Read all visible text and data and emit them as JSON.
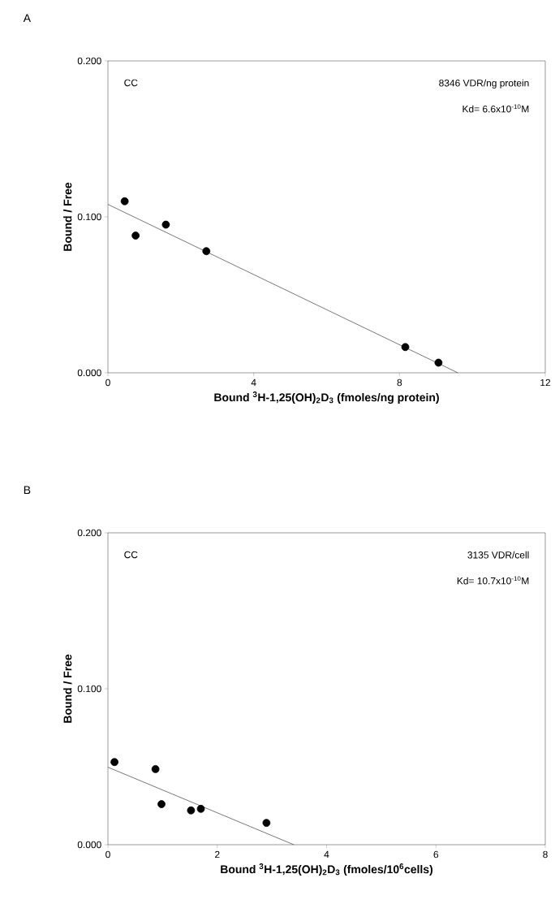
{
  "chart_data": [
    {
      "type": "scatter",
      "title": "A",
      "xlabel": "Bound $^{3}$H-1,25(OH)$_{2}$D$_{3}$ (fmoles/ng protein)",
      "ylabel": "Bound / Free",
      "xlim": [
        0,
        12
      ],
      "xticks": [
        0,
        4,
        8,
        12
      ],
      "ylim": [
        0,
        0.2
      ],
      "yticks": [
        {
          "value": 0,
          "label": "0.000"
        },
        {
          "value": 0.1,
          "label": "0.100"
        },
        {
          "value": 0.2,
          "label": "0.200"
        }
      ],
      "annotations": [
        "CC",
        "8346 VDR/ng protein",
        "Kd= 6.6x10$^{-10}$M"
      ],
      "series": [
        {
          "color": "#000000",
          "marker": "circle",
          "x": [
            0.46,
            0.76,
            1.59,
            2.7,
            8.16,
            9.07
          ],
          "values": [
            0.11,
            0.088,
            0.095,
            0.078,
            0.0165,
            0.0065
          ]
        },
        {
          "type": "line",
          "color": "#555555",
          "marker": "none",
          "x": [
            0,
            9.6
          ],
          "values": [
            0.108,
            0
          ]
        }
      ]
    },
    {
      "type": "scatter",
      "title": "B",
      "xlabel": "Bound $^{3}$H-1,25(OH)$_{2}$D$_{3}$ (fmoles/10$^{6}$cells)",
      "ylabel": "Bound / Free",
      "xlim": [
        0,
        8
      ],
      "xticks": [
        0,
        2,
        4,
        6,
        8
      ],
      "ylim": [
        0,
        0.2
      ],
      "yticks": [
        {
          "value": 0,
          "label": "0.000"
        },
        {
          "value": 0.1,
          "label": "0.100"
        },
        {
          "value": 0.2,
          "label": "0.200"
        }
      ],
      "annotations": [
        "CC",
        "3135 VDR/cell",
        "Kd= 10.7x10$^{-10}$M"
      ],
      "series": [
        {
          "color": "#000000",
          "marker": "circle",
          "x": [
            0.12,
            0.87,
            0.98,
            1.52,
            1.7,
            2.9
          ],
          "values": [
            0.053,
            0.0485,
            0.026,
            0.022,
            0.023,
            0.014
          ]
        },
        {
          "type": "line",
          "color": "#555555",
          "marker": "none",
          "x": [
            0,
            3.4
          ],
          "values": [
            0.0497,
            0
          ]
        }
      ]
    }
  ]
}
